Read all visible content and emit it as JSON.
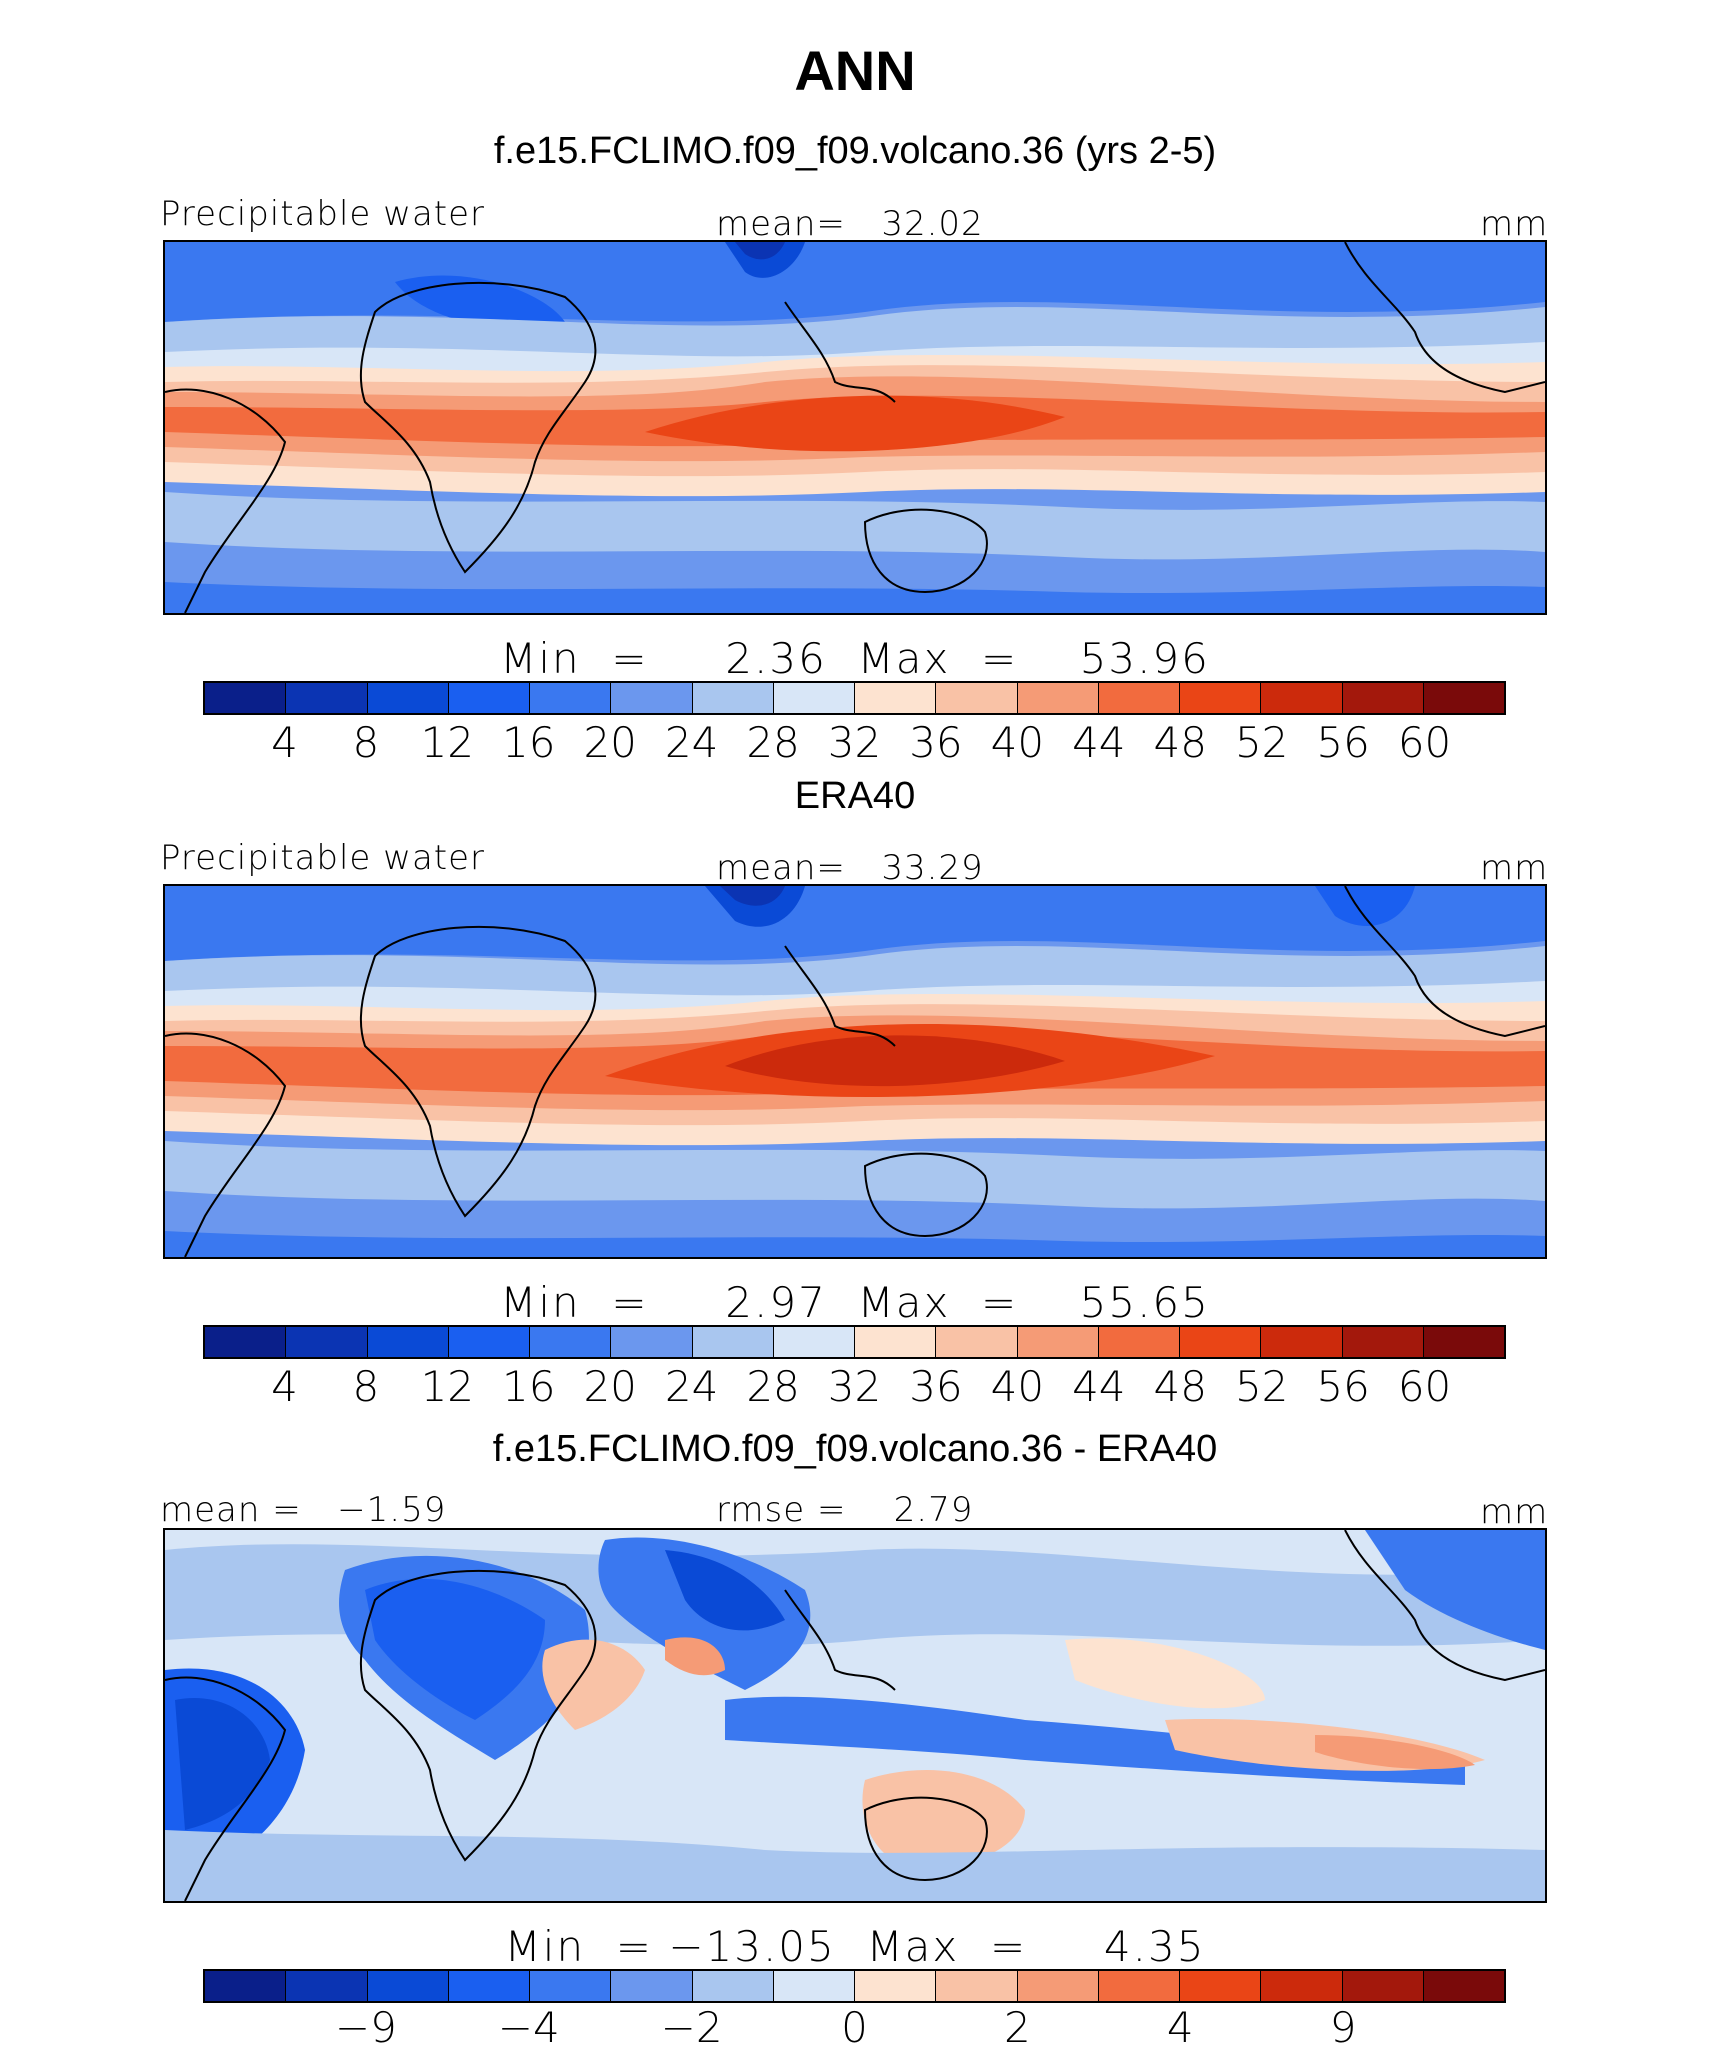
{
  "figure": {
    "title": "ANN",
    "colors": {
      "palette": [
        "#0a1f8a",
        "#0b34b3",
        "#0a4ad6",
        "#1a5ff0",
        "#3a78f0",
        "#6b97ee",
        "#a9c6ef",
        "#d8e6f7",
        "#fde3d0",
        "#f9c2a6",
        "#f59b76",
        "#f26b3e",
        "#ea4516",
        "#cc2a0c",
        "#a3180c",
        "#7a0a0a"
      ],
      "land": "#000000"
    }
  },
  "panels": [
    {
      "title": "f.e15.FCLIMO.f09_f09.volcano.36 (yrs 2-5)",
      "left_label": "Precipitable water",
      "center_label": "mean=   32.02",
      "right_label": "mm",
      "minmax": "Min  =     2.36  Max  =    53.96",
      "ticks": [
        "4",
        "8",
        "12",
        "16",
        "20",
        "24",
        "28",
        "32",
        "36",
        "40",
        "44",
        "48",
        "52",
        "56",
        "60"
      ]
    },
    {
      "title": "ERA40",
      "left_label": "Precipitable water",
      "center_label": "mean=   33.29",
      "right_label": "mm",
      "minmax": "Min  =     2.97  Max  =    55.65",
      "ticks": [
        "4",
        "8",
        "12",
        "16",
        "20",
        "24",
        "28",
        "32",
        "36",
        "40",
        "44",
        "48",
        "52",
        "56",
        "60"
      ]
    },
    {
      "title": "f.e15.FCLIMO.f09_f09.volcano.36 - ERA40",
      "left_label": "mean =   −1.59",
      "center_label": "rmse =    2.79",
      "right_label": "mm",
      "minmax": "Min  = −13.05  Max  =     4.35",
      "ticks": [
        "−9",
        "−4",
        "−2",
        "0",
        "2",
        "4",
        "9"
      ]
    }
  ],
  "chart_data": [
    {
      "type": "heatmap",
      "title": "f.e15.FCLIMO.f09_f09.volcano.36 (yrs 2-5)",
      "variable": "Precipitable water",
      "units": "mm",
      "mean": 32.02,
      "min": 2.36,
      "max": 53.96,
      "contour_levels": [
        4,
        8,
        12,
        16,
        20,
        24,
        28,
        32,
        36,
        40,
        44,
        48,
        52,
        56,
        60
      ]
    },
    {
      "type": "heatmap",
      "title": "ERA40",
      "variable": "Precipitable water",
      "units": "mm",
      "mean": 33.29,
      "min": 2.97,
      "max": 55.65,
      "contour_levels": [
        4,
        8,
        12,
        16,
        20,
        24,
        28,
        32,
        36,
        40,
        44,
        48,
        52,
        56,
        60
      ]
    },
    {
      "type": "heatmap",
      "title": "f.e15.FCLIMO.f09_f09.volcano.36 - ERA40",
      "units": "mm",
      "mean": -1.59,
      "rmse": 2.79,
      "min": -13.05,
      "max": 4.35,
      "contour_levels": [
        -9,
        -4,
        -2,
        0,
        2,
        4,
        9
      ]
    }
  ]
}
